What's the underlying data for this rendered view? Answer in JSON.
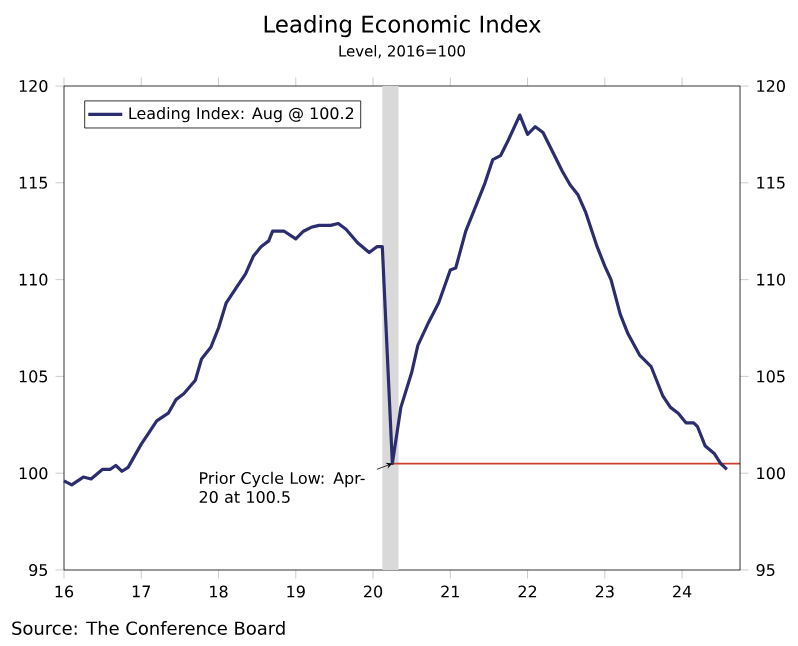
{
  "chart_data": {
    "type": "line",
    "title": "Leading Economic Index",
    "subtitle": "Level, 2016=100",
    "series": [
      {
        "name": "Leading Index: Aug @ 100.2",
        "color": "#2b2d6e",
        "x": [
          16.0,
          16.1,
          16.25,
          16.35,
          16.5,
          16.6,
          16.67,
          16.75,
          16.83,
          17.0,
          17.1,
          17.2,
          17.35,
          17.45,
          17.55,
          17.7,
          17.78,
          17.9,
          18.0,
          18.1,
          18.25,
          18.35,
          18.45,
          18.55,
          18.65,
          18.7,
          18.85,
          19.0,
          19.1,
          19.2,
          19.3,
          19.45,
          19.55,
          19.65,
          19.8,
          19.95,
          20.05,
          20.12,
          20.25,
          20.36,
          20.5,
          20.58,
          20.72,
          20.85,
          21.0,
          21.07,
          21.2,
          21.3,
          21.45,
          21.55,
          21.65,
          21.75,
          21.9,
          22.0,
          22.1,
          22.2,
          22.3,
          22.45,
          22.55,
          22.65,
          22.75,
          22.9,
          23.0,
          23.08,
          23.2,
          23.3,
          23.45,
          23.6,
          23.75,
          23.85,
          23.95,
          24.05,
          24.15,
          24.2,
          24.3,
          24.42,
          24.5,
          24.58
        ],
        "values": [
          99.6,
          99.4,
          99.8,
          99.7,
          100.2,
          100.2,
          100.4,
          100.1,
          100.3,
          101.5,
          102.1,
          102.7,
          103.1,
          103.8,
          104.1,
          104.8,
          105.9,
          106.5,
          107.5,
          108.8,
          109.7,
          110.3,
          111.2,
          111.7,
          112.0,
          112.5,
          112.5,
          112.1,
          112.5,
          112.7,
          112.8,
          112.8,
          112.9,
          112.6,
          111.9,
          111.4,
          111.7,
          111.7,
          100.5,
          103.4,
          105.2,
          106.6,
          107.8,
          108.8,
          110.5,
          110.6,
          112.5,
          113.5,
          115.0,
          116.2,
          116.4,
          117.2,
          118.5,
          117.5,
          117.9,
          117.6,
          116.8,
          115.6,
          114.9,
          114.4,
          113.5,
          111.7,
          110.7,
          110.0,
          108.2,
          107.2,
          106.1,
          105.5,
          104.0,
          103.4,
          103.1,
          102.6,
          102.6,
          102.4,
          101.4,
          101.0,
          100.5,
          100.2
        ]
      },
      {
        "color": "#d0402e",
        "x": [
          20.25,
          24.75
        ],
        "values": [
          100.5,
          100.5
        ]
      }
    ],
    "xlim": [
      16,
      24.75
    ],
    "xticks": [
      16,
      17,
      18,
      19,
      20,
      21,
      22,
      23,
      24
    ],
    "ylim": [
      95,
      120
    ],
    "yticks": [
      95,
      100,
      105,
      110,
      115,
      120
    ],
    "y2lim": [
      95,
      120
    ],
    "y2ticks": [
      95,
      100,
      105,
      110,
      115,
      120
    ],
    "bands": [
      {
        "axis": "x",
        "from": 20.12,
        "to": 20.33,
        "color": "#d9d9d9"
      }
    ],
    "legend": "top left",
    "marker": "none",
    "annotations": [
      {
        "text": "Prior Cycle Low: Apr-20 at 100.5",
        "x": 20.25,
        "y": 100.5
      },
      "Source: The Conference Board"
    ]
  }
}
